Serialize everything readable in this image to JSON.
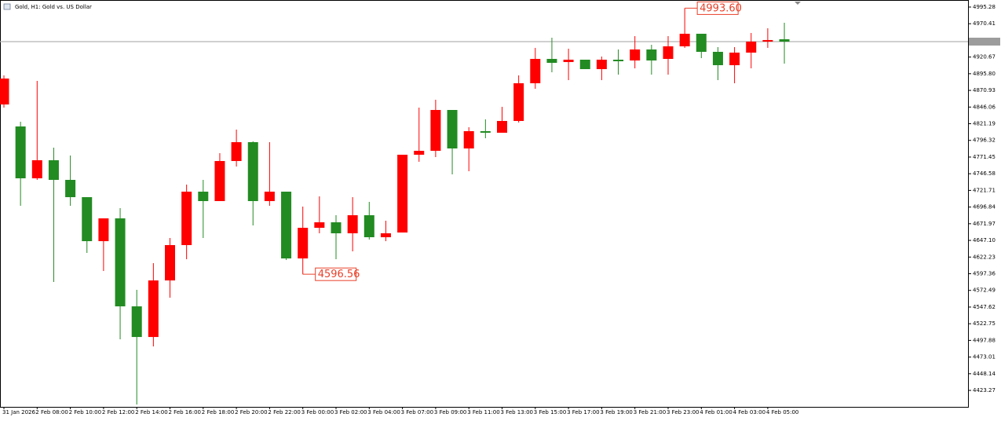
{
  "chart_data": {
    "type": "candlestick",
    "title": "Gold, H1: Gold vs. US Dollar",
    "up_color": "#ff0000",
    "down_color": "#228b22",
    "ylim": [
      4398.7,
      5005.8
    ],
    "yticks": [
      4995.28,
      4970.41,
      4920.67,
      {
        "value": 4895.8,
        "label": "4895.80"
      },
      4870.93,
      4846.06,
      4821.19,
      4796.32,
      4771.45,
      4746.58,
      4721.71,
      4696.84,
      4671.97,
      {
        "value": 4647.1,
        "label": "4647.10"
      },
      4622.23,
      4597.36,
      4572.49,
      4547.62,
      4522.75,
      4497.88,
      4473.01,
      4448.14,
      4423.27
    ],
    "price_line": 4943.7,
    "categories": [
      "31 Jan 2026",
      null,
      "2 Feb 08:00",
      null,
      "2 Feb 10:00",
      null,
      "2 Feb 12:00",
      null,
      "2 Feb 14:00",
      null,
      "2 Feb 16:00",
      null,
      "2 Feb 18:00",
      null,
      "2 Feb 20:00",
      null,
      "2 Feb 22:00",
      null,
      "3 Feb 00:00",
      null,
      "3 Feb 02:00",
      null,
      "3 Feb 04:00",
      null,
      "3 Feb 07:00",
      null,
      "3 Feb 09:00",
      null,
      "3 Feb 11:00",
      null,
      "3 Feb 13:00",
      null,
      "3 Feb 15:00",
      null,
      "3 Feb 17:00",
      null,
      "3 Feb 19:00",
      null,
      "3 Feb 21:00",
      null,
      "3 Feb 23:00",
      null,
      "4 Feb 01:00",
      null,
      "4 Feb 03:00",
      null,
      "4 Feb 05:00",
      null
    ],
    "open": [
      4849.93,
      4817.11,
      4739.74,
      4766.7,
      4737.4,
      4711.61,
      4645.96,
      4679.96,
      4548.67,
      4502.96,
      4587.35,
      4640.1,
      4719.81,
      4705.75,
      4765.53,
      4793.66,
      4705.75,
      4719.81,
      4620.18,
      4665.89,
      4674.1,
      4657.69,
      4684.65,
      4651.83,
      4658.86,
      4774.91,
      4780.77,
      4841.72,
      4784.28,
      4810.07,
      4807.73,
      4825.31,
      4881.58,
      4917.91,
      4913.23,
      4916.74,
      4902.68,
      4916.74,
      4915.57,
      4931.98,
      4917.91,
      4936.67,
      4955.43,
      4928.46,
      4908.54,
      4927.29,
      4943.7,
      4947.22
    ],
    "high": [
      4893.3,
      4824.14,
      4885.09,
      4785.46,
      4773.73,
      4711.61,
      4679.96,
      4695.2,
      4573.29,
      4613.14,
      4650.65,
      4730.36,
      4737.4,
      4777.25,
      4812.42,
      4794.83,
      4793.66,
      4719.81,
      4697.54,
      4712.78,
      4684.65,
      4711.61,
      4704.57,
      4676.44,
      4774.91,
      4845.24,
      4856.96,
      4841.72,
      4815.93,
      4827.66,
      4846.41,
      4893.3,
      4934.33,
      4949.56,
      4933.15,
      4916.74,
      4921.43,
      4931.98,
      4951.91,
      4939.01,
      4951.91,
      4993.6,
      4955.43,
      4935.5,
      4935.5,
      4956.6,
      4963.63,
      4971.84
    ],
    "low": [
      4845.24,
      4698.71,
      4737.4,
      4585.01,
      4698.71,
      4628.38,
      4601.42,
      4499.44,
      4402.15,
      4488.89,
      4561.57,
      4619.0,
      4650.65,
      4705.75,
      4757.32,
      4669.41,
      4698.71,
      4617.83,
      4596.56,
      4657.69,
      4619.0,
      4630.73,
      4648.31,
      4645.96,
      4658.86,
      4764.36,
      4771.39,
      4745.6,
      4750.29,
      4799.52,
      4807.73,
      4822.97,
      4873.37,
      4897.99,
      4886.27,
      4902.68,
      4886.27,
      4894.47,
      4903.85,
      4894.47,
      4894.47,
      4934.33,
      4919.09,
      4886.27,
      4881.58,
      4903.85,
      4934.33,
      4910.88
    ],
    "close": [
      4888.61,
      4739.74,
      4766.7,
      4737.4,
      4711.61,
      4645.96,
      4679.96,
      4548.67,
      4502.96,
      4587.35,
      4640.1,
      4719.81,
      4705.75,
      4765.53,
      4793.66,
      4705.75,
      4719.81,
      4620.18,
      4665.89,
      4674.1,
      4657.69,
      4684.65,
      4651.83,
      4657.69,
      4774.91,
      4780.77,
      4841.72,
      4784.28,
      4810.07,
      4807.73,
      4825.31,
      4881.58,
      4917.91,
      4912.05,
      4916.74,
      4902.68,
      4916.74,
      4914.4,
      4931.98,
      4915.57,
      4936.67,
      4955.43,
      4928.46,
      4908.54,
      4927.29,
      4943.7,
      4946.05,
      4943.7
    ],
    "annotations": [
      {
        "label": "4993.60",
        "value": 4993.6
      },
      {
        "label": "4596.56",
        "value": 4596.56
      }
    ]
  }
}
